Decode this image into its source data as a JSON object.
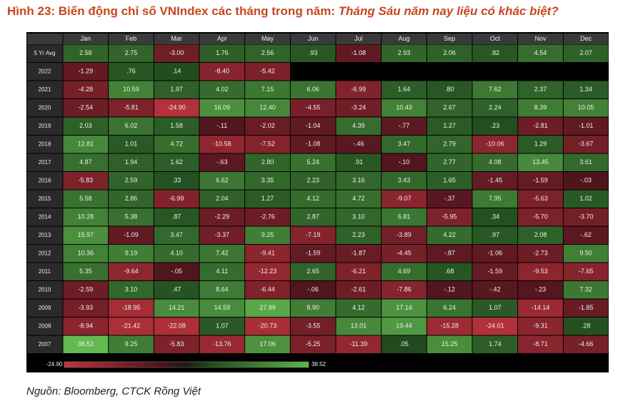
{
  "header": {
    "title": "Hình 23: Biến động chỉ số VNIndex các tháng trong năm: ",
    "title_emphasis": "Tháng Sáu năm nay liệu có khác biệt?"
  },
  "table": {
    "columns": [
      "Jan",
      "Feb",
      "Mar",
      "Apr",
      "May",
      "Jun",
      "Jul",
      "Aug",
      "Sep",
      "Oct",
      "Nov",
      "Dec"
    ],
    "rows": [
      {
        "label": "5 Yr Avg",
        "cells": [
          "2.58",
          "2.75",
          "-3.00",
          "1.76",
          "2.56",
          ".93",
          "-1.08",
          "2.93",
          "2.06",
          ".82",
          "4.54",
          "2.07"
        ]
      },
      {
        "label": "2022",
        "cells": [
          "-1.29",
          ".76",
          ".14",
          "-8.40",
          "-5.42"
        ]
      },
      {
        "label": "2021",
        "cells": [
          "-4.28",
          "10.59",
          "1.97",
          "4.02",
          "7.15",
          "6.06",
          "-6.99",
          "1.64",
          ".80",
          "7.62",
          "2.37",
          "1.34"
        ]
      },
      {
        "label": "2020",
        "cells": [
          "-2.54",
          "-5.81",
          "-24.90",
          "16.09",
          "12.40",
          "-4.55",
          "-3.24",
          "10.43",
          "2.67",
          "2.24",
          "8.39",
          "10.05"
        ]
      },
      {
        "label": "2019",
        "cells": [
          "2.03",
          "6.02",
          "1.58",
          "-.11",
          "-2.02",
          "-1.04",
          "4.39",
          "-.77",
          "1.27",
          ".23",
          "-2.81",
          "-1.01"
        ]
      },
      {
        "label": "2018",
        "cells": [
          "12.81",
          "1.01",
          "4.72",
          "-10.58",
          "-7.52",
          "-1.08",
          "-.46",
          "3.47",
          "2.79",
          "-10.06",
          "1.29",
          "-3.67"
        ]
      },
      {
        "label": "2017",
        "cells": [
          "4.87",
          "1.94",
          "1.62",
          "-.63",
          "2.80",
          "5.24",
          ".91",
          "-.10",
          "2.77",
          "4.08",
          "13.45",
          "3.61"
        ]
      },
      {
        "label": "2016",
        "cells": [
          "-5.83",
          "2.59",
          ".33",
          "6.62",
          "3.35",
          "2.23",
          "3.16",
          "3.43",
          "1.65",
          "-1.45",
          "-1.59",
          "-.03"
        ]
      },
      {
        "label": "2015",
        "cells": [
          "5.58",
          "2.86",
          "-6.99",
          "2.04",
          "1.27",
          "4.12",
          "4.72",
          "-9.07",
          "-.37",
          "7.95",
          "-5.63",
          "1.02"
        ]
      },
      {
        "label": "2014",
        "cells": [
          "10.28",
          "5.38",
          ".87",
          "-2.29",
          "-2.76",
          "2.87",
          "3.10",
          "6.81",
          "-5.95",
          ".34",
          "-5.70",
          "-3.70"
        ]
      },
      {
        "label": "2013",
        "cells": [
          "15.97",
          "-1.09",
          "3.47",
          "-3.37",
          "9.25",
          "-7.19",
          "2.23",
          "-3.89",
          "4.22",
          ".97",
          "2.08",
          "-.62"
        ]
      },
      {
        "label": "2012",
        "cells": [
          "10.36",
          "9.19",
          "4.10",
          "7.42",
          "-9.41",
          "-1.59",
          "-1.87",
          "-4.45",
          "-.87",
          "-1.06",
          "-2.73",
          "9.50"
        ]
      },
      {
        "label": "2011",
        "cells": [
          "5.35",
          "-9.64",
          "-.05",
          "4.11",
          "-12.23",
          "2.65",
          "-6.21",
          "4.69",
          ".68",
          "-1.59",
          "-9.53",
          "-7.65"
        ]
      },
      {
        "label": "2010",
        "cells": [
          "-2.59",
          "3.10",
          ".47",
          "8.64",
          "-6.44",
          "-.06",
          "-2.61",
          "-7.86",
          "-.12",
          "-.42",
          "-.23",
          "7.32"
        ]
      },
      {
        "label": "2009",
        "cells": [
          "-3.93",
          "-18.95",
          "14.21",
          "14.59",
          "27.99",
          "8.90",
          "4.12",
          "17.14",
          "6.24",
          "1.07",
          "-14.14",
          "-1.85"
        ]
      },
      {
        "label": "2008",
        "cells": [
          "-8.94",
          "-21.42",
          "-22.08",
          "1.07",
          "-20.73",
          "-3.55",
          "13.01",
          "19.44",
          "-15.28",
          "-24.01",
          "-9.31",
          ".28"
        ]
      },
      {
        "label": "2007",
        "cells": [
          "38.52",
          "9.25",
          "-5.83",
          "-13.76",
          "17.06",
          "-5.25",
          "-11.39",
          ".05",
          "15.25",
          "1.74",
          "-8.71",
          "-4.66"
        ]
      }
    ]
  },
  "legend": {
    "min": "-24.90",
    "max": "38.52"
  },
  "source": "Nguồn: Bloomberg, CTCK Rồng Việt"
}
